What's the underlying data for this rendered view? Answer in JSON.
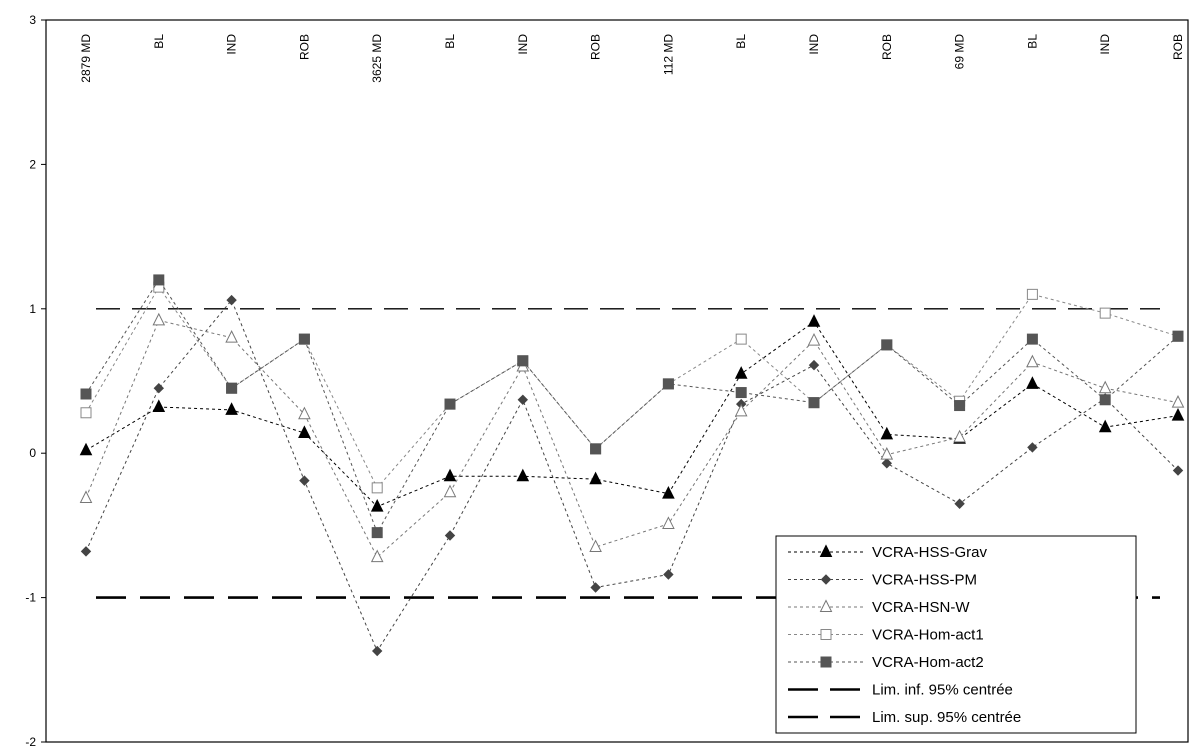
{
  "chart_data": {
    "type": "line",
    "categories": [
      "2879 MD",
      "BL",
      "IND",
      "ROB",
      "3625 MD",
      "BL",
      "IND",
      "ROB",
      "112 MD",
      "BL",
      "IND",
      "ROB",
      "69 MD",
      "BL",
      "IND",
      "ROB"
    ],
    "ylim": [
      -2,
      3
    ],
    "yticks": [
      "3",
      "2",
      "1",
      "0",
      "-1",
      "-2"
    ],
    "grid": false,
    "legend_position": "bottom-right",
    "series": [
      {
        "name": "VCRA-HSS-Grav",
        "marker": "triangle-filled",
        "color": "#000000",
        "values": [
          0.02,
          0.32,
          0.3,
          0.14,
          -0.37,
          -0.16,
          -0.16,
          -0.18,
          -0.28,
          0.55,
          0.91,
          0.13,
          0.1,
          0.48,
          0.18,
          0.26
        ]
      },
      {
        "name": "VCRA-HSS-PM",
        "marker": "diamond-filled",
        "color": "#444444",
        "values": [
          -0.68,
          0.45,
          1.06,
          -0.19,
          -1.37,
          -0.57,
          0.37,
          -0.93,
          -0.84,
          0.34,
          0.61,
          -0.07,
          -0.35,
          0.04,
          0.38,
          -0.12
        ]
      },
      {
        "name": "VCRA-HSN-W",
        "marker": "triangle-open",
        "color": "#777777",
        "values": [
          -0.31,
          0.92,
          0.8,
          0.27,
          -0.72,
          -0.27,
          0.6,
          -0.65,
          -0.49,
          0.29,
          0.78,
          -0.01,
          0.11,
          0.63,
          0.45,
          0.35
        ]
      },
      {
        "name": "VCRA-Hom-act1",
        "marker": "square-open",
        "color": "#888888",
        "values": [
          0.28,
          1.15,
          0.45,
          0.79,
          -0.24,
          0.34,
          0.64,
          0.03,
          0.48,
          0.79,
          0.35,
          0.75,
          0.36,
          1.1,
          0.97,
          0.81
        ]
      },
      {
        "name": "VCRA-Hom-act2",
        "marker": "square-filled",
        "color": "#555555",
        "values": [
          0.41,
          1.2,
          0.45,
          0.79,
          -0.55,
          0.34,
          0.64,
          0.03,
          0.48,
          0.42,
          0.35,
          0.75,
          0.33,
          0.79,
          0.37,
          0.81
        ]
      }
    ],
    "reference_lines": [
      {
        "name": "Lim. inf. 95% centrée",
        "value": -1,
        "dash": "long"
      },
      {
        "name": "Lim. sup. 95% centrée",
        "value": 1,
        "dash": "long"
      }
    ]
  }
}
